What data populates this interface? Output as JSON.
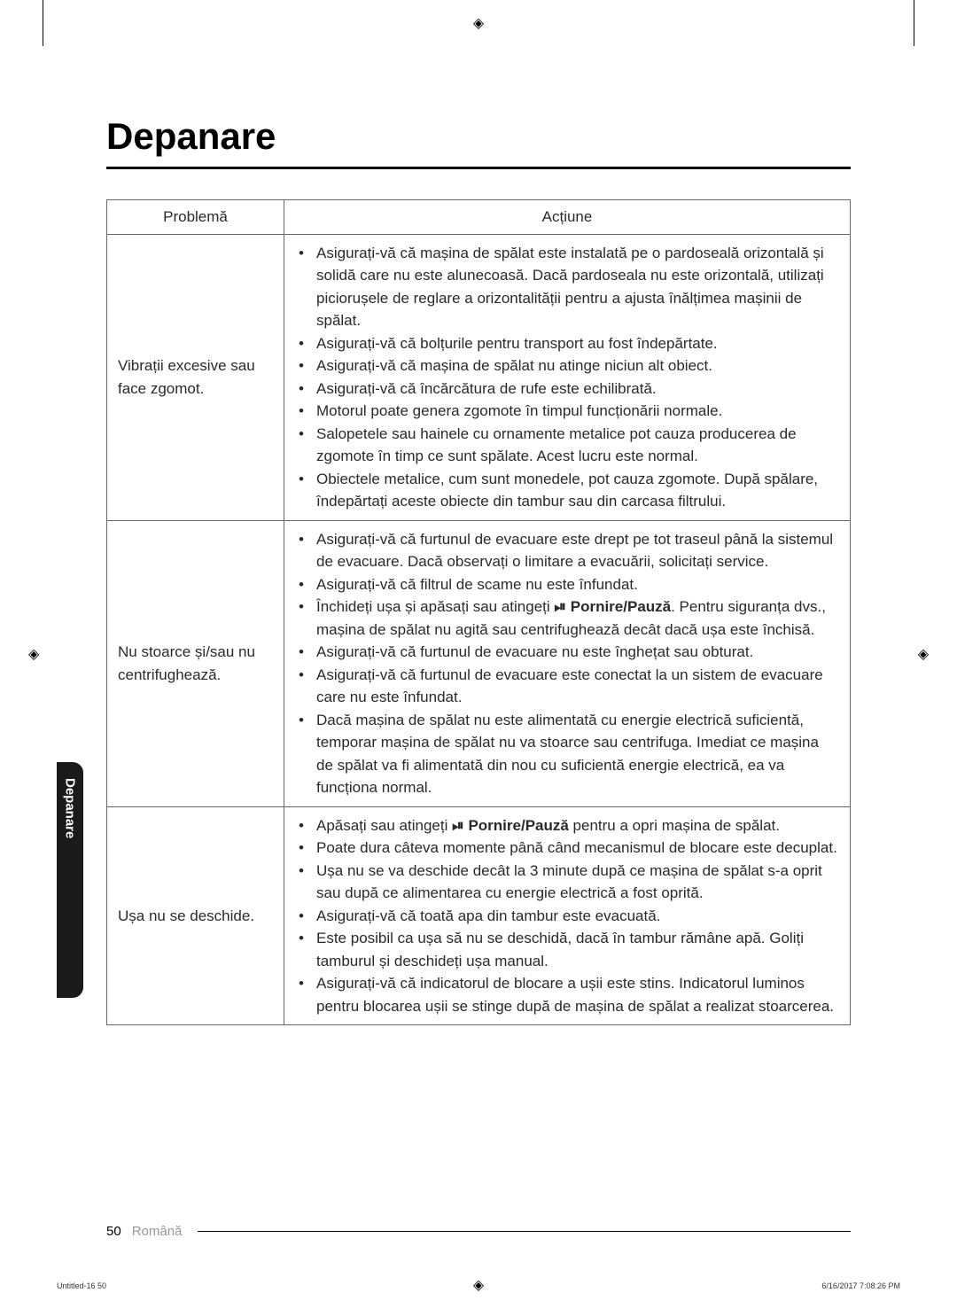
{
  "heading": "Depanare",
  "table": {
    "headers": {
      "problem": "Problemă",
      "action": "Acțiune"
    },
    "rows": [
      {
        "problem": "Vibrații excesive sau face zgomot.",
        "actions": [
          "Asigurați-vă că mașina de spălat este instalată pe o pardoseală orizontală și solidă care nu este alunecoasă. Dacă pardoseala nu este orizontală, utilizați piciorușele de reglare a orizontalității pentru a ajusta înălțimea mașinii de spălat.",
          "Asigurați-vă că bolțurile pentru transport au fost îndepărtate.",
          "Asigurați-vă că mașina de spălat nu atinge niciun alt obiect.",
          "Asigurați-vă că încărcătura de rufe este echilibrată.",
          "Motorul poate genera zgomote în timpul funcționării normale.",
          "Salopetele sau hainele cu ornamente metalice pot cauza producerea de zgomote în timp ce sunt spălate. Acest lucru este normal.",
          "Obiectele metalice, cum sunt monedele, pot cauza zgomote. După spălare, îndepărtați aceste obiecte din tambur sau din carcasa filtrului."
        ]
      },
      {
        "problem": "Nu stoarce și/sau nu centrifughează.",
        "actions_special": [
          {
            "text": "Asigurați-vă că furtunul de evacuare este drept pe tot traseul până la sistemul de evacuare. Dacă observați o limitare a evacuării, solicitați service."
          },
          {
            "text": "Asigurați-vă că filtrul de scame nu este înfundat."
          },
          {
            "text_before": "Închideți ușa și apăsați sau atingeți ",
            "icon": "⏯",
            "bold": "Pornire/Pauză",
            "text_after": ". Pentru siguranța dvs., mașina de spălat nu agită sau centrifughează decât dacă ușa este închisă."
          },
          {
            "text": "Asigurați-vă că furtunul de evacuare nu este înghețat sau obturat."
          },
          {
            "text": "Asigurați-vă că furtunul de evacuare este conectat la un sistem de evacuare care nu este înfundat."
          },
          {
            "text": "Dacă mașina de spălat nu este alimentată cu energie electrică suficientă, temporar mașina de spălat nu va stoarce sau centrifuga. Imediat ce mașina de spălat va fi alimentată din nou cu suficientă energie electrică, ea va funcționa normal."
          }
        ]
      },
      {
        "problem": "Ușa nu se deschide.",
        "actions_special": [
          {
            "text_before": "Apăsați sau atingeți ",
            "icon": "⏯",
            "bold": "Pornire/Pauză",
            "text_after": " pentru a opri mașina de spălat."
          },
          {
            "text": "Poate dura câteva momente până când mecanismul de blocare este decuplat."
          },
          {
            "text": "Ușa nu se va deschide decât la 3 minute după ce mașina de spălat s-a oprit sau după ce alimentarea cu energie electrică a fost oprită."
          },
          {
            "text": "Asigurați-vă că toată apa din tambur este evacuată."
          },
          {
            "text": "Este posibil ca ușa să nu se deschidă, dacă în tambur rămâne apă. Goliți tamburul și deschideți ușa manual."
          },
          {
            "text": "Asigurați-vă că indicatorul de blocare a ușii este stins. Indicatorul luminos pentru blocarea ușii se stinge după de mașina de spălat a realizat stoarcerea."
          }
        ]
      }
    ]
  },
  "side_tab": "Depanare",
  "footer": {
    "page_number": "50",
    "language": "Română"
  },
  "print_meta": {
    "left": "Untitled-16   50",
    "right": "6/16/2017   7:08:26 PM"
  },
  "colors": {
    "text": "#2a2a2a",
    "border": "#666666",
    "tab_bg": "#1a1a1a",
    "tab_text": "#ffffff",
    "language_text": "#999999"
  }
}
